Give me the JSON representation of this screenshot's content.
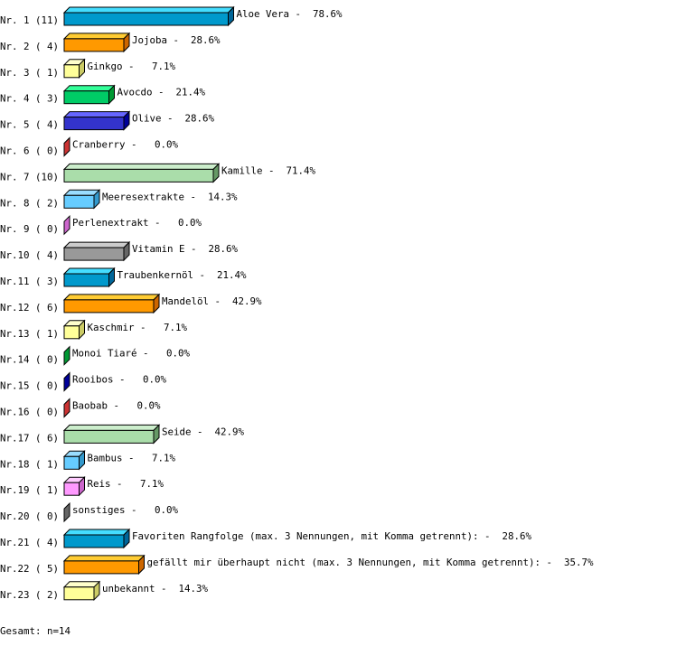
{
  "chart_data": {
    "type": "bar",
    "orientation": "horizontal",
    "style": "3d",
    "total_label": "Gesamt: n=14",
    "categories": [
      {
        "rank": "Nr. 1",
        "count": 11,
        "label": "Aloe Vera",
        "percent": "78.6%",
        "color": "#0099cc",
        "top": "#44ddff",
        "side": "#006699"
      },
      {
        "rank": "Nr. 2",
        "count": 4,
        "label": "Jojoba",
        "percent": "28.6%",
        "color": "#ff9900",
        "top": "#ffcc33",
        "side": "#cc6600"
      },
      {
        "rank": "Nr. 3",
        "count": 1,
        "label": "Ginkgo",
        "percent": "7.1%",
        "color": "#ffff99",
        "top": "#ffffcc",
        "side": "#cccc66"
      },
      {
        "rank": "Nr. 4",
        "count": 3,
        "label": "Avocdo",
        "percent": "21.4%",
        "color": "#00cc66",
        "top": "#33ff99",
        "side": "#009933"
      },
      {
        "rank": "Nr. 5",
        "count": 4,
        "label": "Olive",
        "percent": "28.6%",
        "color": "#3333cc",
        "top": "#6666ff",
        "side": "#000099"
      },
      {
        "rank": "Nr. 6",
        "count": 0,
        "label": "Cranberry",
        "percent": "0.0%",
        "color": "#cc3333",
        "top": "#ff6666",
        "side": "#cc3333"
      },
      {
        "rank": "Nr. 7",
        "count": 10,
        "label": "Kamille",
        "percent": "71.4%",
        "color": "#aaddaa",
        "top": "#cceecc",
        "side": "#669966"
      },
      {
        "rank": "Nr. 8",
        "count": 2,
        "label": "Meeresextrakte",
        "percent": "14.3%",
        "color": "#66ccff",
        "top": "#99ddff",
        "side": "#3399cc"
      },
      {
        "rank": "Nr. 9",
        "count": 0,
        "label": "Perlenextrakt",
        "percent": "0.0%",
        "color": "#cc66cc",
        "top": "#ff99ff",
        "side": "#cc66cc"
      },
      {
        "rank": "Nr.10",
        "count": 4,
        "label": "Vitamin E",
        "percent": "28.6%",
        "color": "#999999",
        "top": "#cccccc",
        "side": "#666666"
      },
      {
        "rank": "Nr.11",
        "count": 3,
        "label": "Traubenkernöl",
        "percent": "21.4%",
        "color": "#0099cc",
        "top": "#44ddff",
        "side": "#006699"
      },
      {
        "rank": "Nr.12",
        "count": 6,
        "label": "Mandelöl",
        "percent": "42.9%",
        "color": "#ff9900",
        "top": "#ffcc33",
        "side": "#cc6600"
      },
      {
        "rank": "Nr.13",
        "count": 1,
        "label": "Kaschmir",
        "percent": "7.1%",
        "color": "#ffff99",
        "top": "#ffffcc",
        "side": "#cccc66"
      },
      {
        "rank": "Nr.14",
        "count": 0,
        "label": "Monoi Tiaré",
        "percent": "0.0%",
        "color": "#009933",
        "top": "#33cc66",
        "side": "#009933"
      },
      {
        "rank": "Nr.15",
        "count": 0,
        "label": "Rooibos",
        "percent": "0.0%",
        "color": "#000099",
        "top": "#3333cc",
        "side": "#000099"
      },
      {
        "rank": "Nr.16",
        "count": 0,
        "label": "Baobab",
        "percent": "0.0%",
        "color": "#cc3333",
        "top": "#ff6666",
        "side": "#cc3333"
      },
      {
        "rank": "Nr.17",
        "count": 6,
        "label": "Seide",
        "percent": "42.9%",
        "color": "#aaddaa",
        "top": "#cceecc",
        "side": "#669966"
      },
      {
        "rank": "Nr.18",
        "count": 1,
        "label": "Bambus",
        "percent": "7.1%",
        "color": "#66ccff",
        "top": "#99ddff",
        "side": "#3399cc"
      },
      {
        "rank": "Nr.19",
        "count": 1,
        "label": "Reis",
        "percent": "7.1%",
        "color": "#ff99ff",
        "top": "#ffccff",
        "side": "#cc66cc"
      },
      {
        "rank": "Nr.20",
        "count": 0,
        "label": "sonstiges",
        "percent": "0.0%",
        "color": "#666666",
        "top": "#999999",
        "side": "#666666"
      },
      {
        "rank": "Nr.21",
        "count": 4,
        "label": "Favoriten Rangfolge (max. 3 Nennungen, mit Komma getrennt):",
        "percent": "28.6%",
        "color": "#0099cc",
        "top": "#44ddff",
        "side": "#006699"
      },
      {
        "rank": "Nr.22",
        "count": 5,
        "label": "gefällt mir überhaupt nicht (max. 3 Nennungen, mit Komma getrennt):",
        "percent": "35.7%",
        "color": "#ff9900",
        "top": "#ffcc33",
        "side": "#cc6600"
      },
      {
        "rank": "Nr.23",
        "count": 2,
        "label": "unbekannt",
        "percent": "14.3%",
        "color": "#ffff99",
        "top": "#ffffcc",
        "side": "#cccc66"
      }
    ]
  }
}
